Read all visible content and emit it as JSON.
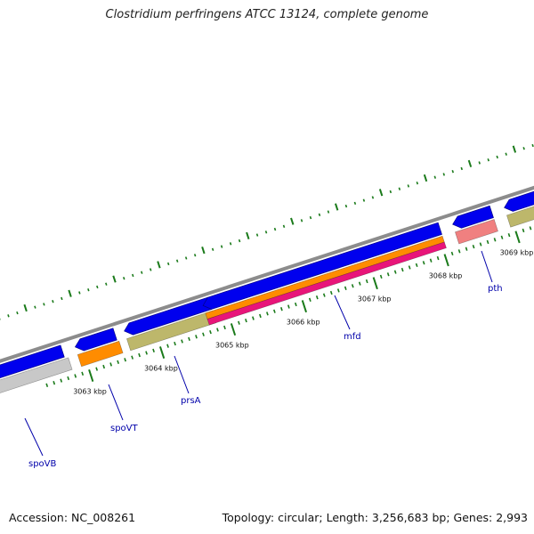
{
  "title": "Clostridium perfringens ATCC 13124, complete genome",
  "footer": {
    "accession": "Accession: NC_008261",
    "summary": "Topology: circular; Length: 3,256,683 bp; Genes: 2,993"
  },
  "colors": {
    "backbone": "#8c8c8c",
    "cds_forward": "#0000ee",
    "tick": "#1a7a1a",
    "label": "#0000aa",
    "orange": "#ff8c00",
    "pink": "#e8157a",
    "khaki": "#bdb76b",
    "gray": "#c8c8c8",
    "salmon": "#f08080"
  },
  "scale_labels": [
    "3063 kbp",
    "3064 kbp",
    "3065 kbp",
    "3066 kbp",
    "3067 kbp",
    "3068 kbp",
    "3069 kbp"
  ],
  "genes": [
    {
      "name": "spoVB",
      "color": "gray"
    },
    {
      "name": "spoVT",
      "color": "orange"
    },
    {
      "name": "prsA",
      "color": "khaki"
    },
    {
      "name": "mfd",
      "color": "orange"
    },
    {
      "name": "pth",
      "color": "salmon"
    }
  ]
}
